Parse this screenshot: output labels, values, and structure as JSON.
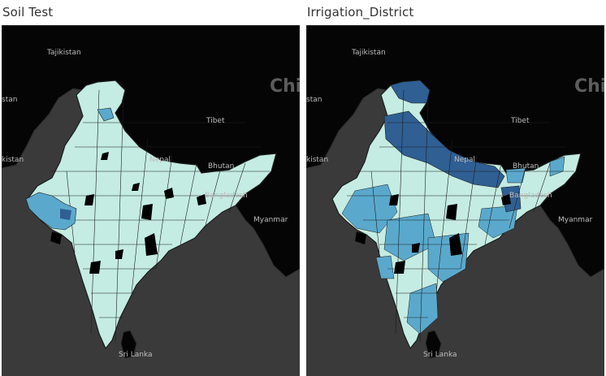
{
  "panels": [
    {
      "title": "Soil Test",
      "labels": {
        "tajikistan": "Tajikistan",
        "china": "Chi",
        "tibet": "Tibet",
        "nepal": "Nepal",
        "bhutan": "Bhutan",
        "bangladesh": "Bangladesh",
        "myanmar": "Myanmar",
        "sri_lanka": "Sri Lanka",
        "pakistan": "kistan",
        "afg": "stan"
      },
      "palette": {
        "ocean": "#3a3a3a",
        "land_other": "#050505",
        "india_base": "#c4ece2",
        "mid": "#5aa9cd",
        "dark": "#2f5f93",
        "nodata": "#000000",
        "border": "#262626"
      },
      "regions": [
        {
          "id": "north_tip",
          "level": "base"
        },
        {
          "id": "punjab_blue",
          "level": "mid"
        },
        {
          "id": "gujarat_blue",
          "level": "mid"
        },
        {
          "id": "blackspots",
          "level": "nodata"
        }
      ]
    },
    {
      "title": "Irrigation_District",
      "labels": {
        "tajikistan": "Tajikistan",
        "china": "Chi",
        "tibet": "Tibet",
        "nepal": "Nepal",
        "bhutan": "Bhutan",
        "bangladesh": "Bangladesh",
        "myanmar": "Myanmar",
        "sri_lanka": "Sri Lanka",
        "pakistan": "kistan",
        "afg": "stan"
      },
      "palette": {
        "ocean": "#3a3a3a",
        "land_other": "#050505",
        "india_base": "#c4ece2",
        "mid": "#5aa9cd",
        "dark": "#2f5f93",
        "nodata": "#000000",
        "border": "#262626"
      },
      "regions": [
        {
          "id": "kashmir",
          "level": "dark"
        },
        {
          "id": "ganges_plain",
          "level": "dark"
        },
        {
          "id": "central_mixed",
          "level": "mid"
        },
        {
          "id": "blackspots",
          "level": "nodata"
        }
      ]
    }
  ]
}
